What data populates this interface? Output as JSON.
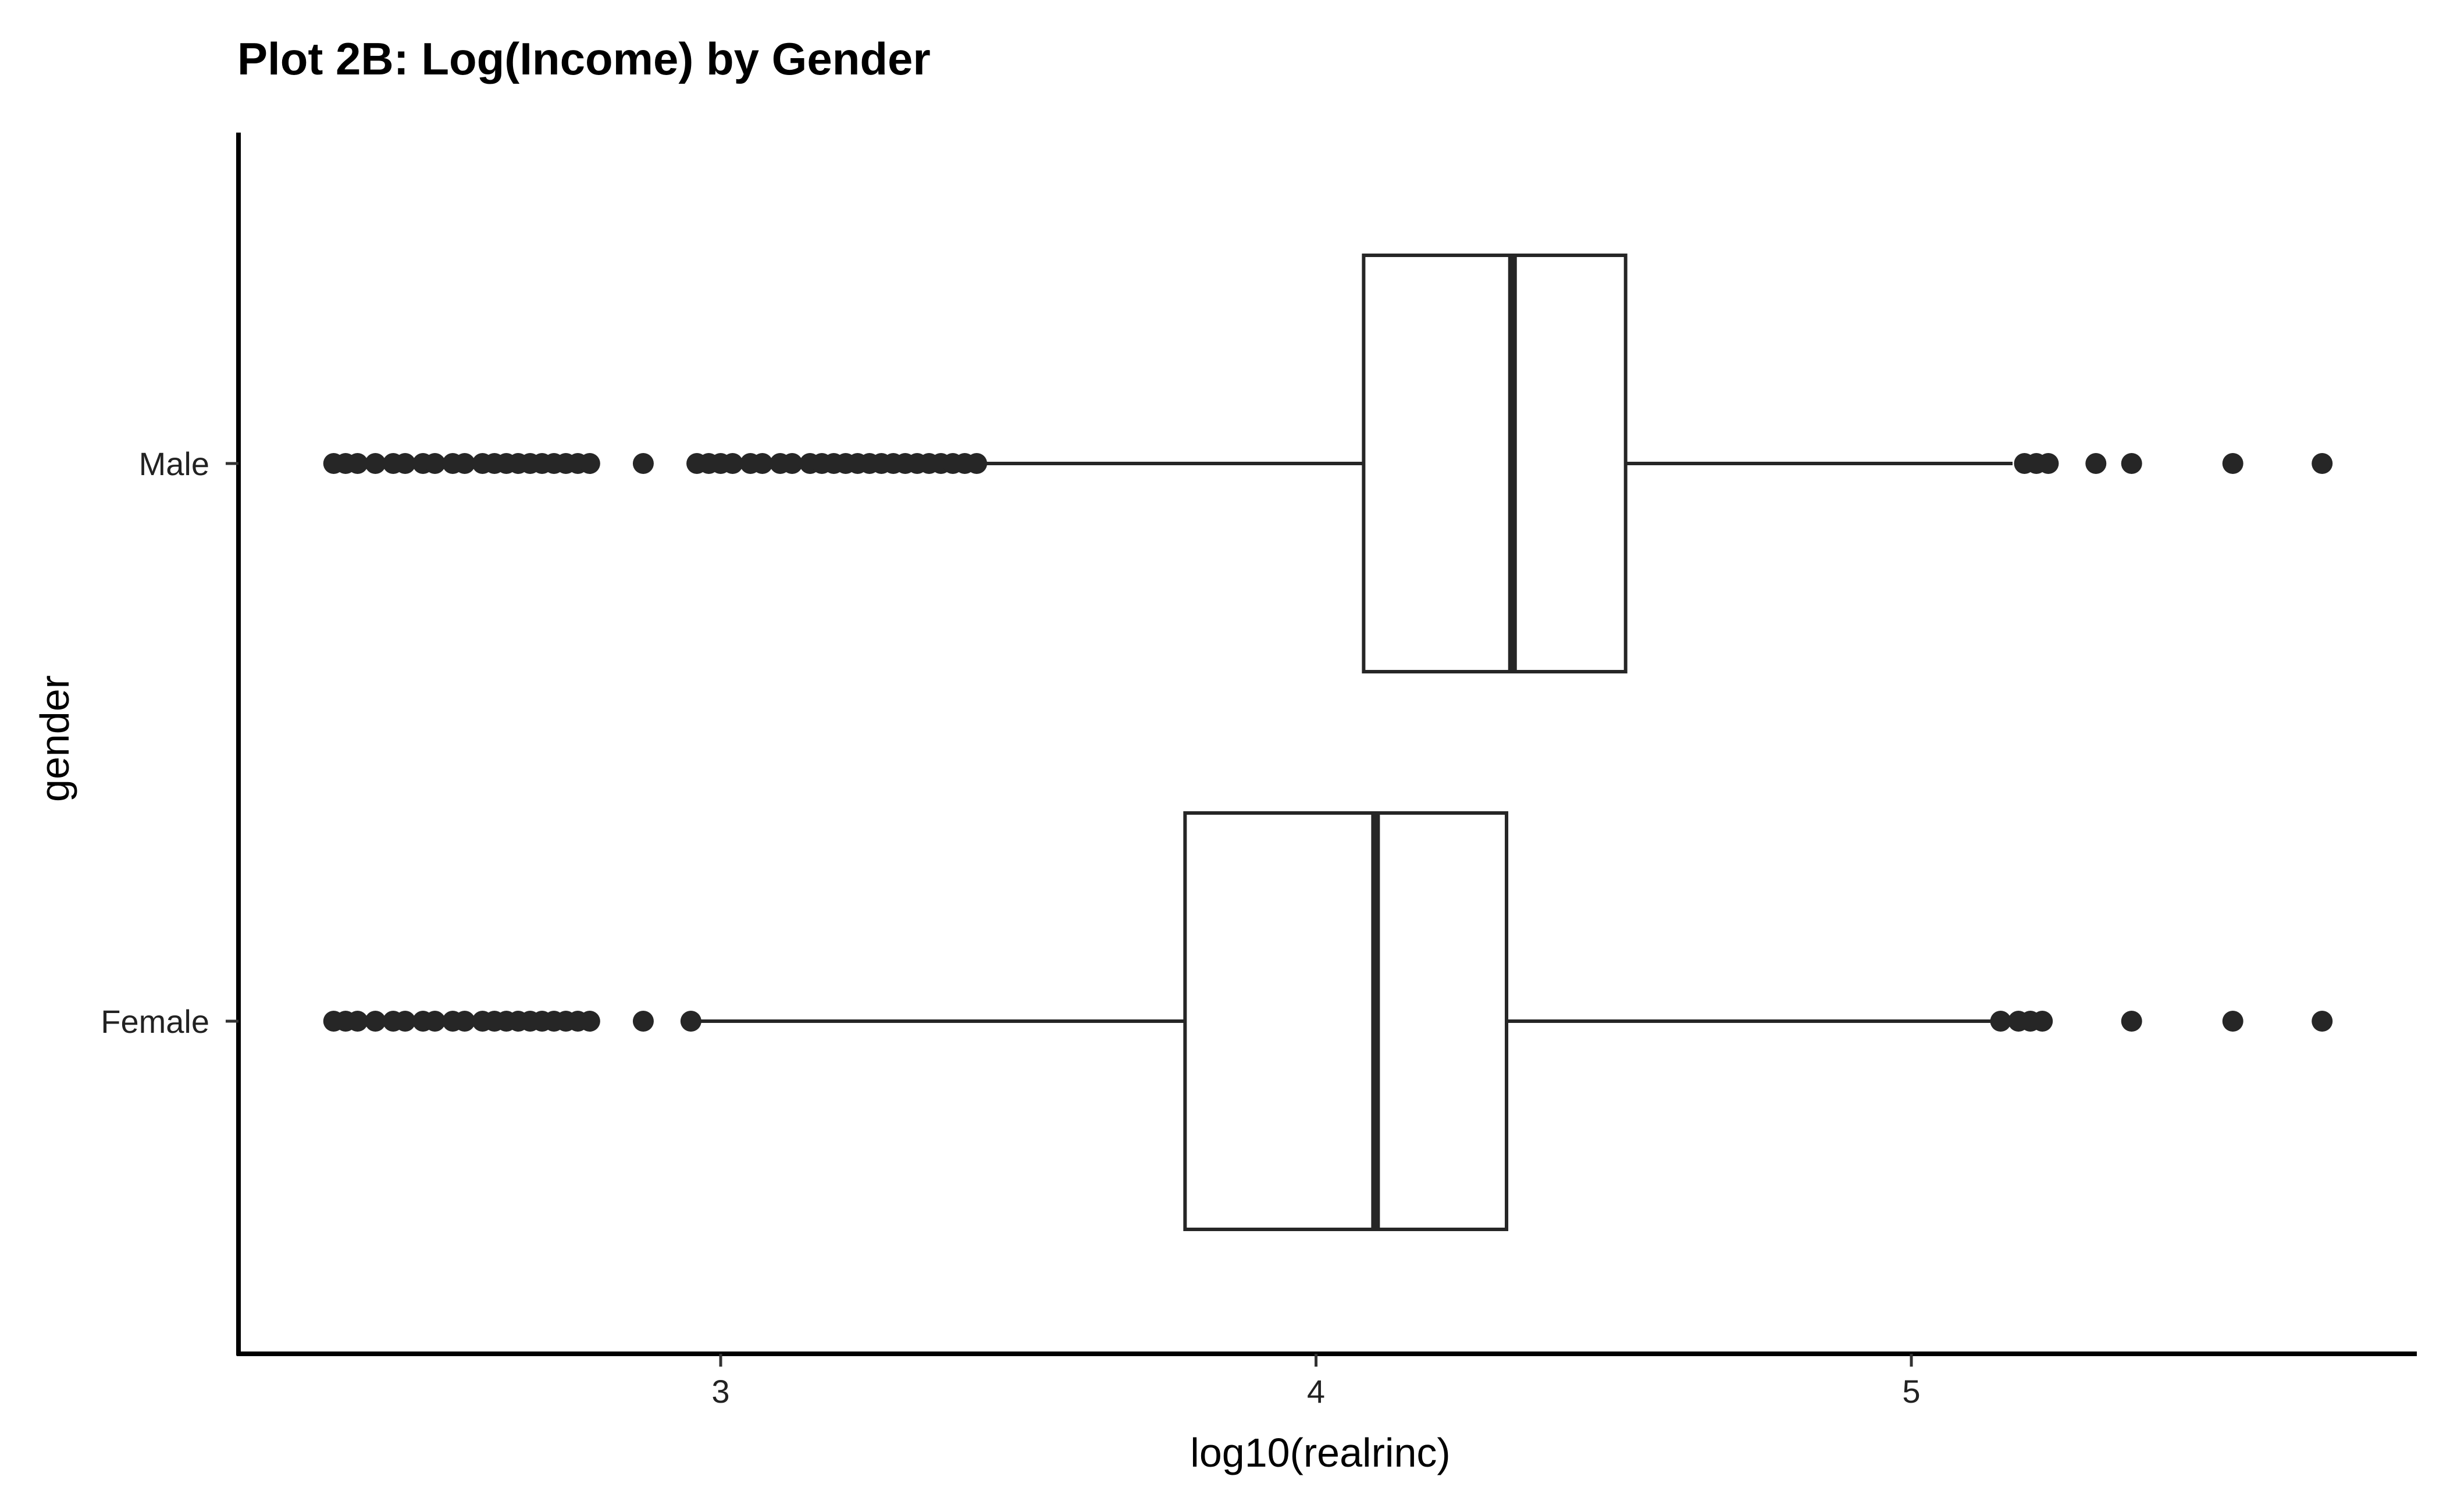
{
  "chart_data": {
    "type": "boxplot",
    "orientation": "horizontal",
    "title": "Plot 2B: Log(Income) by Gender",
    "xlabel": "log10(realrinc)",
    "ylabel": "gender",
    "xlim": [
      2.2,
      5.85
    ],
    "x_ticks": [
      3,
      4,
      5
    ],
    "x_tick_labels": [
      "3",
      "4",
      "5"
    ],
    "categories": [
      "Male",
      "Female"
    ],
    "grid": false,
    "legend": "none",
    "colors": {
      "box_fill": "#ffffff",
      "box_stroke": "#262626",
      "point": "#262626",
      "axis": "#000000"
    },
    "series": [
      {
        "category": "Male",
        "whisker_low": 2.95,
        "q1": 4.08,
        "median": 4.33,
        "q3": 4.52,
        "whisker_high": 5.17,
        "outliers": [
          2.35,
          2.37,
          2.39,
          2.42,
          2.45,
          2.47,
          2.5,
          2.52,
          2.55,
          2.57,
          2.6,
          2.62,
          2.64,
          2.66,
          2.68,
          2.7,
          2.72,
          2.74,
          2.76,
          2.78,
          2.87,
          2.96,
          2.98,
          3.0,
          3.02,
          3.05,
          3.07,
          3.1,
          3.12,
          3.15,
          3.17,
          3.19,
          3.21,
          3.23,
          3.25,
          3.27,
          3.29,
          3.31,
          3.33,
          3.35,
          3.37,
          3.39,
          3.41,
          3.43,
          5.19,
          5.21,
          5.23,
          5.31,
          5.37,
          5.54,
          5.69
        ]
      },
      {
        "category": "Female",
        "whisker_low": 2.96,
        "q1": 3.78,
        "median": 4.1,
        "q3": 4.32,
        "whisker_high": 5.15,
        "outliers": [
          2.35,
          2.37,
          2.39,
          2.42,
          2.45,
          2.47,
          2.5,
          2.52,
          2.55,
          2.57,
          2.6,
          2.62,
          2.64,
          2.66,
          2.68,
          2.7,
          2.72,
          2.74,
          2.76,
          2.78,
          2.87,
          2.95,
          5.15,
          5.18,
          5.2,
          5.22,
          5.37,
          5.54,
          5.69
        ]
      }
    ]
  }
}
